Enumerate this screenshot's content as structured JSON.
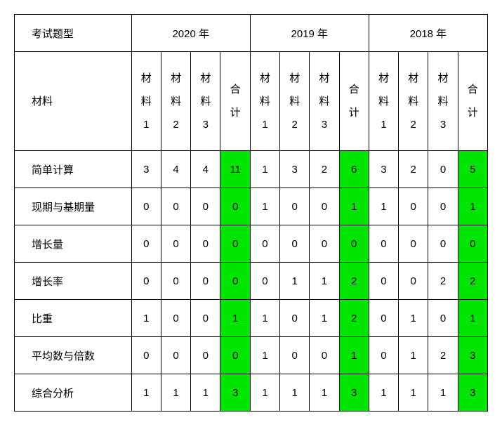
{
  "colors": {
    "highlight": "#00e500",
    "border": "#000000",
    "text": "#000000",
    "background": "#ffffff"
  },
  "header": {
    "first_col": "考试题型",
    "years": [
      "2020 年",
      "2019 年",
      "2018 年"
    ]
  },
  "subheader": {
    "first_col": "材料",
    "material1": "材\n料\n1",
    "material2": "材\n料\n2",
    "material3": "材\n料\n3",
    "total": "合\n计"
  },
  "rows": [
    {
      "label": "简单计算",
      "y2020": {
        "m1": "3",
        "m2": "4",
        "m3": "4",
        "total": "11"
      },
      "y2019": {
        "m1": "1",
        "m2": "3",
        "m3": "2",
        "total": "6"
      },
      "y2018": {
        "m1": "3",
        "m2": "2",
        "m3": "0",
        "total": "5"
      }
    },
    {
      "label": "现期与基期量",
      "y2020": {
        "m1": "0",
        "m2": "0",
        "m3": "0",
        "total": "0"
      },
      "y2019": {
        "m1": "1",
        "m2": "0",
        "m3": "0",
        "total": "1"
      },
      "y2018": {
        "m1": "1",
        "m2": "0",
        "m3": "0",
        "total": "1"
      }
    },
    {
      "label": "增长量",
      "y2020": {
        "m1": "0",
        "m2": "0",
        "m3": "0",
        "total": "0"
      },
      "y2019": {
        "m1": "0",
        "m2": "0",
        "m3": "0",
        "total": "0"
      },
      "y2018": {
        "m1": "0",
        "m2": "0",
        "m3": "0",
        "total": "0"
      }
    },
    {
      "label": "增长率",
      "y2020": {
        "m1": "0",
        "m2": "0",
        "m3": "0",
        "total": "0"
      },
      "y2019": {
        "m1": "0",
        "m2": "1",
        "m3": "1",
        "total": "2"
      },
      "y2018": {
        "m1": "0",
        "m2": "0",
        "m3": "2",
        "total": "2"
      }
    },
    {
      "label": "比重",
      "y2020": {
        "m1": "1",
        "m2": "0",
        "m3": "0",
        "total": "1"
      },
      "y2019": {
        "m1": "1",
        "m2": "0",
        "m3": "1",
        "total": "2"
      },
      "y2018": {
        "m1": "0",
        "m2": "1",
        "m3": "0",
        "total": "1"
      }
    },
    {
      "label": "平均数与倍数",
      "y2020": {
        "m1": "0",
        "m2": "0",
        "m3": "0",
        "total": "0"
      },
      "y2019": {
        "m1": "1",
        "m2": "0",
        "m3": "0",
        "total": "1"
      },
      "y2018": {
        "m1": "0",
        "m2": "1",
        "m3": "2",
        "total": "3"
      }
    },
    {
      "label": "综合分析",
      "y2020": {
        "m1": "1",
        "m2": "1",
        "m3": "1",
        "total": "3"
      },
      "y2019": {
        "m1": "1",
        "m2": "1",
        "m3": "1",
        "total": "3"
      },
      "y2018": {
        "m1": "1",
        "m2": "1",
        "m3": "1",
        "total": "3"
      }
    }
  ]
}
